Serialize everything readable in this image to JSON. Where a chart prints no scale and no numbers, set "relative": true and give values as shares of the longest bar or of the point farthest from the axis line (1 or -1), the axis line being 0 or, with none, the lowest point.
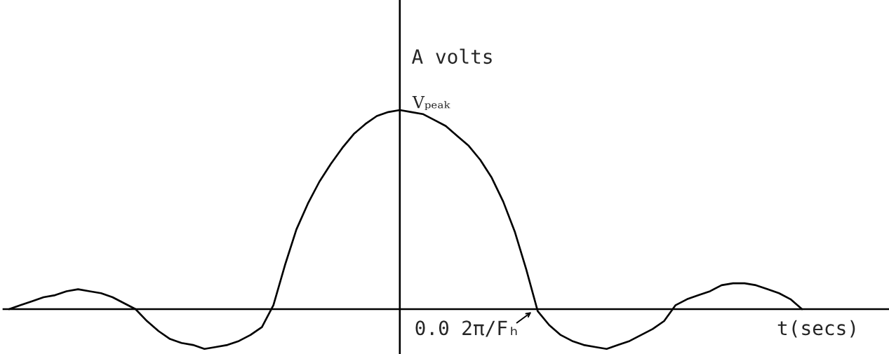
{
  "chart_data": {
    "type": "line",
    "relative": true,
    "xlabel": "t(secs)",
    "ylabel": "A volts",
    "categories": [
      null,
      null,
      null,
      null,
      null,
      null,
      null,
      null,
      null,
      null,
      null,
      null,
      null,
      null,
      null,
      null,
      null,
      null,
      null,
      null,
      null,
      null,
      null,
      null,
      null,
      null,
      null,
      null,
      null,
      null,
      null,
      null,
      null,
      null,
      null,
      null,
      null,
      null,
      null,
      null,
      null,
      null,
      null,
      null,
      null,
      null,
      null,
      null,
      null,
      null,
      null,
      null,
      null,
      null,
      null,
      null,
      null,
      null,
      null,
      null,
      null,
      null,
      null,
      null,
      null,
      null,
      null,
      null,
      null,
      null
    ],
    "series": [
      {
        "color": "#000000",
        "values": [
          0,
          0.02,
          0.04,
          0.06,
          0.07,
          0.09,
          0.1,
          0.09,
          0.08,
          0.06,
          0.03,
          0,
          -0.06,
          -0.11,
          -0.15,
          -0.17,
          -0.18,
          -0.2,
          -0.19,
          -0.18,
          -0.16,
          -0.13,
          -0.09,
          0.02,
          0.22,
          0.4,
          0.53,
          0.64,
          0.73,
          0.81,
          0.88,
          0.93,
          0.97,
          0.99,
          1,
          0.99,
          0.98,
          0.95,
          0.92,
          0.87,
          0.82,
          0.75,
          0.66,
          0.54,
          0.39,
          0.2,
          -0.01,
          -0.08,
          -0.13,
          -0.16,
          -0.18,
          -0.19,
          -0.2,
          -0.18,
          -0.16,
          -0.13,
          -0.1,
          -0.06,
          0.02,
          0.05,
          0.07,
          0.09,
          0.12,
          0.13,
          0.13,
          0.12,
          0.1,
          0.08,
          0.05,
          0
        ]
      }
    ],
    "annotations": [
      "Vₚₑₐₖ",
      "0.0",
      "2π/Fₕ"
    ]
  }
}
